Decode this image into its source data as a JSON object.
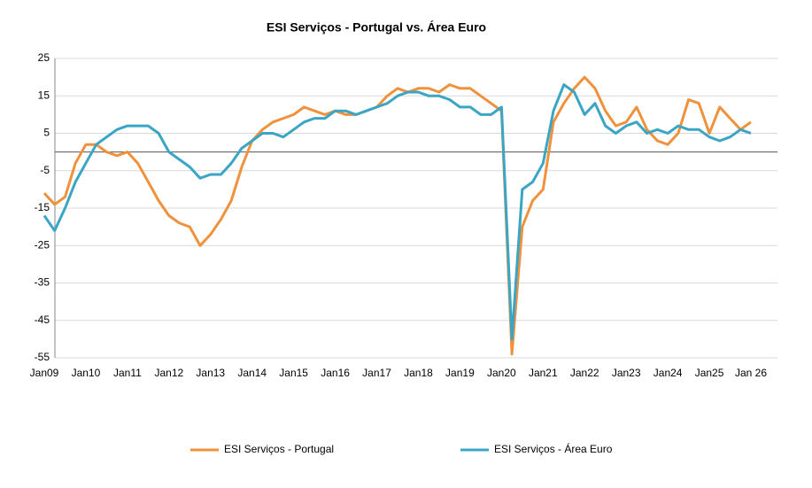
{
  "chart_data": {
    "type": "line",
    "title": "ESI  Serviços  -  Portugal vs. Área Euro",
    "categories": [
      "Jan09",
      null,
      null,
      null,
      "Jan10",
      null,
      null,
      null,
      "Jan11",
      null,
      null,
      null,
      "Jan12",
      null,
      null,
      null,
      "Jan13",
      null,
      null,
      null,
      "Jan14",
      null,
      null,
      null,
      "Jan15",
      null,
      null,
      null,
      "Jan16",
      null,
      null,
      null,
      "Jan17",
      null,
      null,
      null,
      "Jan18",
      null,
      null,
      null,
      "Jan19",
      null,
      null,
      null,
      "Jan20",
      null,
      null,
      null,
      "Jan21",
      null,
      null,
      null,
      "Jan22",
      null,
      null,
      null,
      "Jan23",
      null,
      null,
      null,
      "Jan24",
      null,
      null,
      null,
      "Jan25",
      null,
      null,
      null,
      "Jan 26"
    ],
    "series": [
      {
        "name": "ESI Serviços  - Portugal",
        "color": "#f0913c",
        "values": [
          -11,
          -14,
          -12,
          -3,
          2,
          2,
          0,
          -1,
          0,
          -3,
          -8,
          -13,
          -17,
          -19,
          -20,
          -25,
          -22,
          -18,
          -13,
          -4,
          3,
          6,
          8,
          9,
          10,
          12,
          11,
          10,
          11,
          10,
          10,
          11,
          12,
          15,
          17,
          16,
          17,
          17,
          16,
          18,
          17,
          17,
          15,
          13,
          11,
          -54,
          -20,
          -13,
          -10,
          8,
          13,
          17,
          20,
          17,
          11,
          7,
          8,
          12,
          6,
          3,
          2,
          5,
          14,
          13,
          5,
          12,
          9,
          6,
          8
        ]
      },
      {
        "name": "ESI Serviços - Área Euro",
        "color": "#3aa5c4",
        "values": [
          -17,
          -21,
          -15,
          -8,
          -3,
          2,
          4,
          6,
          7,
          7,
          7,
          5,
          0,
          -2,
          -4,
          -7,
          -6,
          -6,
          -3,
          1,
          3,
          5,
          5,
          4,
          6,
          8,
          9,
          9,
          11,
          11,
          10,
          11,
          12,
          13,
          15,
          16,
          16,
          15,
          15,
          14,
          12,
          12,
          10,
          10,
          12,
          -50,
          -10,
          -8,
          -3,
          11,
          18,
          16,
          10,
          13,
          7,
          5,
          7,
          8,
          5,
          6,
          5,
          7,
          6,
          6,
          4,
          3,
          4,
          6,
          5
        ]
      }
    ],
    "ylim": [
      -55,
      25
    ],
    "yticks": [
      -55,
      -45,
      -35,
      -25,
      -15,
      -5,
      5,
      15,
      25
    ],
    "grid": true,
    "legend": "bottom"
  }
}
